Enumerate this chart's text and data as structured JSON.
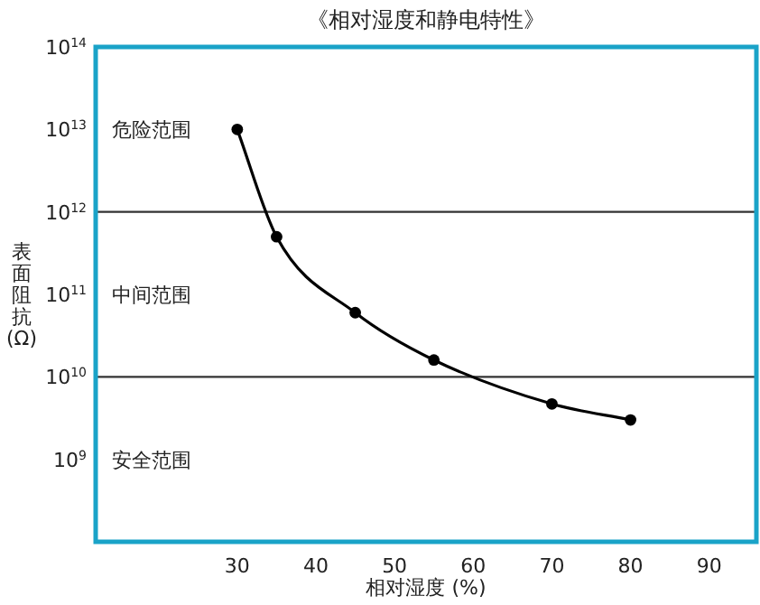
{
  "chart_data": {
    "type": "line",
    "title": "《相对湿度和静电特性》",
    "xlabel": "相对湿度 (%)",
    "ylabel": "表面阻抗(Ω)",
    "x": [
      30,
      35,
      45,
      55,
      70,
      80
    ],
    "series": [
      {
        "color": "#000000",
        "values": [
          10000000000000.0,
          500000000000.0,
          60000000000.0,
          16000000000.0,
          4700000000.0,
          3000000000.0
        ]
      }
    ],
    "log": "y",
    "marker": "circle",
    "line_style": "solid",
    "grid": false,
    "xlim": [
      12,
      96
    ],
    "xticks": [
      30,
      40,
      50,
      60,
      70,
      80,
      90
    ],
    "ylim": [
      100000000.0,
      100000000000000.0
    ],
    "yticks": [
      {
        "value": 1000000000.0,
        "label": "10$^{9}$"
      },
      {
        "value": 10000000000.0,
        "label": "10$^{10}$"
      },
      {
        "value": 100000000000.0,
        "label": "10$^{11}$"
      },
      {
        "value": 1000000000000.0,
        "label": "10$^{12}$"
      },
      {
        "value": 10000000000000.0,
        "label": "10$^{13}$"
      },
      {
        "value": 100000000000000.0,
        "label": "10$^{14}$"
      }
    ],
    "ref_lines": [
      {
        "axis": "y",
        "value": 1000000000000.0,
        "color": "#333333"
      },
      {
        "axis": "y",
        "value": 10000000000.0,
        "color": "#333333"
      }
    ],
    "annotations": [
      "危险范围",
      "中间范围",
      "安全范围"
    ]
  }
}
